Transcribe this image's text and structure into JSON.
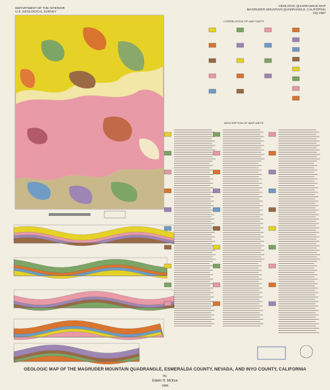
{
  "header": {
    "agency": "DEPARTMENT OF THE INTERIOR",
    "survey": "U.S. GEOLOGICAL SURVEY",
    "map_series": "GEOLOGIC QUADRANGLE MAP",
    "quadrangle": "MAGRUDER MOUNTAIN QUADRANGLE, CALIFORNIA",
    "number": "GQ-1587"
  },
  "legend": {
    "correlation_heading": "CORRELATION OF MAP UNITS",
    "description_heading": "DESCRIPTION OF MAP UNITS"
  },
  "footer": {
    "title": "GEOLOGIC MAP OF THE MAGRUDER MOUNTAIN QUADRANGLE, ESMERALDA COUNTY, NEVADA, AND INYO COUNTY, CALIFORNIA",
    "by": "By",
    "author": "Edwin H. McKee",
    "year": "1985"
  }
}
